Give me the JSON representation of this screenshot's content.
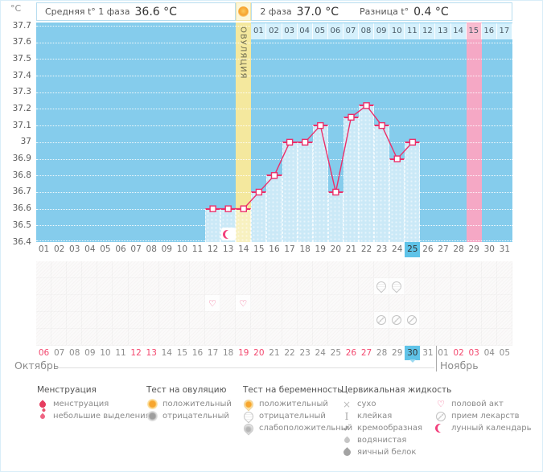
{
  "header": {
    "unit_label": "°C",
    "phase1": {
      "label": "Средняя t° 1 фаза",
      "value": "36.6 °C"
    },
    "phase2": {
      "label": "2 фаза",
      "value": "37.0 °C"
    },
    "diff": {
      "label": "Разница t°",
      "value": "0.4 °C"
    },
    "ovulation_label": "ОВУЛЯЦИЯ"
  },
  "chart_data": {
    "type": "bar+line basal body temperature chart",
    "xlabel": "cycle day",
    "ylabel": "°C",
    "ylim": [
      36.4,
      37.7
    ],
    "ytick_labels": [
      "37.7",
      "37.6",
      "37.5",
      "37.4",
      "37.3",
      "37.2",
      "37.1",
      "37",
      "36.9",
      "36.8",
      "36.7",
      "36.6",
      "36.5",
      "36.4"
    ],
    "ytick_values": [
      37.7,
      37.6,
      37.5,
      37.4,
      37.3,
      37.2,
      37.1,
      37.0,
      36.9,
      36.8,
      36.7,
      36.6,
      36.5,
      36.4
    ],
    "grid": "horizontal dotted white lines every 0.1 °C",
    "cycle_days": 31,
    "temps": [
      {
        "day": 12,
        "temp": 36.6
      },
      {
        "day": 13,
        "temp": 36.6
      },
      {
        "day": 14,
        "temp": 36.6
      },
      {
        "day": 15,
        "temp": 36.7
      },
      {
        "day": 16,
        "temp": 36.8
      },
      {
        "day": 17,
        "temp": 37.0
      },
      {
        "day": 18,
        "temp": 37.0
      },
      {
        "day": 19,
        "temp": 37.1
      },
      {
        "day": 20,
        "temp": 36.7
      },
      {
        "day": 21,
        "temp": 37.15
      },
      {
        "day": 22,
        "temp": 37.22
      },
      {
        "day": 23,
        "temp": 37.1
      },
      {
        "day": 24,
        "temp": 36.9
      },
      {
        "day": 25,
        "temp": 37.0
      }
    ],
    "ovulation_day": 14,
    "expected_period_day": 29,
    "today_cycle_day": 25,
    "dpo_row": {
      "start_day": 15,
      "labels": [
        "01",
        "02",
        "03",
        "04",
        "05",
        "06",
        "07",
        "08",
        "09",
        "10",
        "11",
        "12",
        "13",
        "14",
        "15",
        "16",
        "17"
      ],
      "highlighted_label": "15"
    },
    "line_color": "#eb2f6a",
    "bar_color": "#cbe9f7",
    "plot_bg": "#85ccec",
    "ovulation_col_color": "#f4e89e",
    "expected_period_col_color": "#f5a8c5"
  },
  "day_numbers": [
    "01",
    "02",
    "03",
    "04",
    "05",
    "06",
    "07",
    "08",
    "09",
    "10",
    "11",
    "12",
    "13",
    "14",
    "15",
    "16",
    "17",
    "18",
    "19",
    "20",
    "21",
    "22",
    "23",
    "24",
    "25",
    "26",
    "27",
    "28",
    "29",
    "30",
    "31"
  ],
  "event_rows": [
    {
      "name": "ovulation-test",
      "entries": []
    },
    {
      "name": "pregnancy-test",
      "entries": [
        {
          "day": 23,
          "icon": "pregnancy-test-negative"
        },
        {
          "day": 24,
          "icon": "pregnancy-test-negative"
        }
      ]
    },
    {
      "name": "intercourse",
      "entries": [
        {
          "day": 12,
          "icon": "intercourse-heart"
        },
        {
          "day": 14,
          "icon": "intercourse-heart"
        }
      ]
    },
    {
      "name": "medication",
      "entries": [
        {
          "day": 23,
          "icon": "medication-pill"
        },
        {
          "day": 24,
          "icon": "medication-pill"
        },
        {
          "day": 25,
          "icon": "medication-pill"
        }
      ]
    },
    {
      "name": "cervical-fluid",
      "entries": []
    }
  ],
  "lunar_event_day": 13,
  "calendar": {
    "dates": [
      {
        "label": "06",
        "weekend": true
      },
      {
        "label": "07",
        "weekend": false
      },
      {
        "label": "08",
        "weekend": false
      },
      {
        "label": "09",
        "weekend": false
      },
      {
        "label": "10",
        "weekend": false
      },
      {
        "label": "11",
        "weekend": false
      },
      {
        "label": "12",
        "weekend": true
      },
      {
        "label": "13",
        "weekend": true
      },
      {
        "label": "14",
        "weekend": false
      },
      {
        "label": "15",
        "weekend": false
      },
      {
        "label": "16",
        "weekend": false
      },
      {
        "label": "17",
        "weekend": false
      },
      {
        "label": "18",
        "weekend": false
      },
      {
        "label": "19",
        "weekend": true
      },
      {
        "label": "20",
        "weekend": true
      },
      {
        "label": "21",
        "weekend": false
      },
      {
        "label": "22",
        "weekend": false
      },
      {
        "label": "23",
        "weekend": false
      },
      {
        "label": "24",
        "weekend": false
      },
      {
        "label": "25",
        "weendend": false,
        "weekend": false
      },
      {
        "label": "26",
        "weekend": true
      },
      {
        "label": "27",
        "weekend": true
      },
      {
        "label": "28",
        "weekend": false
      },
      {
        "label": "29",
        "weekend": false
      },
      {
        "label": "30",
        "weekend": false
      },
      {
        "label": "31",
        "weekend": false
      },
      {
        "label": "01",
        "weekend": false
      },
      {
        "label": "02",
        "weekend": true
      },
      {
        "label": "03",
        "weekend": true
      },
      {
        "label": "04",
        "weekend": false
      },
      {
        "label": "05",
        "weekend": false
      }
    ],
    "today_index": 24,
    "november_start_index": 26,
    "months": [
      "Октябрь",
      "Ноябрь"
    ]
  },
  "legend": {
    "columns": [
      {
        "title": "Менструация",
        "items": [
          {
            "icon": "menstruation",
            "label": "менструация"
          },
          {
            "icon": "spotting",
            "label": "небольшие выделения"
          }
        ]
      },
      {
        "title": "Тест на овуляцию",
        "items": [
          {
            "icon": "ovulation-test-positive",
            "label": "положительный"
          },
          {
            "icon": "ovulation-test-negative",
            "label": "отрицательный"
          }
        ]
      },
      {
        "title": "Тест на беременность",
        "items": [
          {
            "icon": "pregnancy-test-positive",
            "label": "положительный"
          },
          {
            "icon": "pregnancy-test-negative",
            "label": "отрицательный"
          },
          {
            "icon": "pregnancy-test-weak",
            "label": "слабоположительный"
          }
        ]
      },
      {
        "title": "Цервикальная жидкость",
        "items": [
          {
            "icon": "dry",
            "label": "сухо"
          },
          {
            "icon": "sticky",
            "label": "клейкая"
          },
          {
            "icon": "creamy",
            "label": "кремообразная"
          },
          {
            "icon": "watery",
            "label": "водянистая"
          },
          {
            "icon": "eggwhite",
            "label": "яичный белок"
          }
        ]
      },
      {
        "title": "",
        "items": [
          {
            "icon": "intercourse-heart",
            "label": "половой акт"
          },
          {
            "icon": "medication-pill",
            "label": "прием лекарств"
          },
          {
            "icon": "moon",
            "label": "лунный календарь"
          }
        ]
      }
    ]
  },
  "colors": {
    "accent_blue": "#5fc3e8",
    "weekend_red": "#f3496f",
    "line_pink": "#eb2f6a",
    "period_pink": "#f5a8c5",
    "ovulation_yellow": "#f4e89e"
  }
}
